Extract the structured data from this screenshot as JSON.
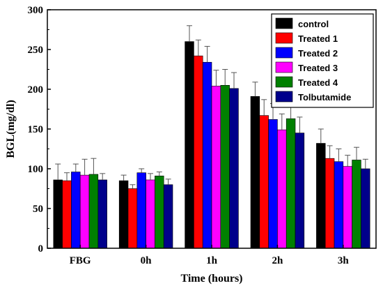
{
  "chart_data": {
    "type": "bar",
    "title": "",
    "xlabel": "Time (hours)",
    "ylabel": "BGL(mg/dl)",
    "ylim": [
      0,
      300
    ],
    "yticks": [
      "0",
      "50",
      "100",
      "150",
      "200",
      "250",
      "300"
    ],
    "categories": [
      "FBG",
      "0h",
      "1h",
      "2h",
      "3h"
    ],
    "grid": false,
    "legend_position": "top-right",
    "series": [
      {
        "name": "control",
        "color": "#000000",
        "values": [
          86,
          85,
          260,
          191,
          132
        ],
        "errors": [
          20,
          7,
          20,
          18,
          18
        ]
      },
      {
        "name": "Treated 1",
        "color": "#ff0000",
        "values": [
          85,
          75,
          242,
          167,
          113
        ],
        "errors": [
          10,
          5,
          20,
          20,
          16
        ]
      },
      {
        "name": "Treated 2",
        "color": "#0000ff",
        "values": [
          96,
          95,
          234,
          162,
          109
        ],
        "errors": [
          10,
          5,
          20,
          20,
          16
        ]
      },
      {
        "name": "Treated 3",
        "color": "#ff00ff",
        "values": [
          92,
          86,
          204,
          149,
          103
        ],
        "errors": [
          20,
          8,
          20,
          20,
          14
        ]
      },
      {
        "name": "Treated 4",
        "color": "#008000",
        "values": [
          93,
          91,
          205,
          163,
          111
        ],
        "errors": [
          20,
          5,
          20,
          20,
          16
        ]
      },
      {
        "name": "Tolbutamide",
        "color": "#00008b",
        "values": [
          86,
          80,
          201,
          145,
          100
        ],
        "errors": [
          8,
          7,
          20,
          20,
          12
        ]
      }
    ]
  }
}
